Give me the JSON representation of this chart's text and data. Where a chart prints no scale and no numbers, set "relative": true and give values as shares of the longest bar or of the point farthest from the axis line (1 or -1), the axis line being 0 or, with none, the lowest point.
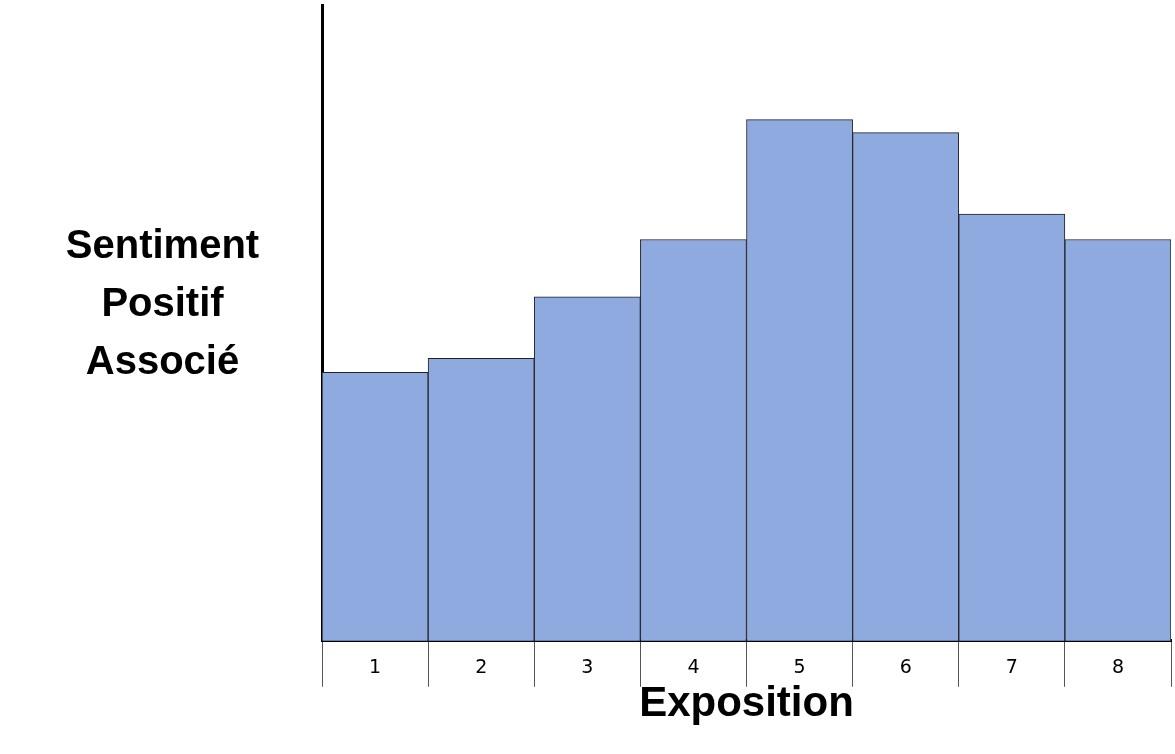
{
  "chart_data": {
    "type": "bar",
    "xlabel": "Exposition",
    "ylabel": "Sentiment Positif Associé",
    "relative": true,
    "categories": [
      "1",
      "2",
      "3",
      "4",
      "5",
      "6",
      "7",
      "8"
    ],
    "values": [
      0.515,
      0.542,
      0.66,
      0.77,
      1,
      0.975,
      0.819,
      0.77
    ],
    "color": "#8eaadf"
  }
}
